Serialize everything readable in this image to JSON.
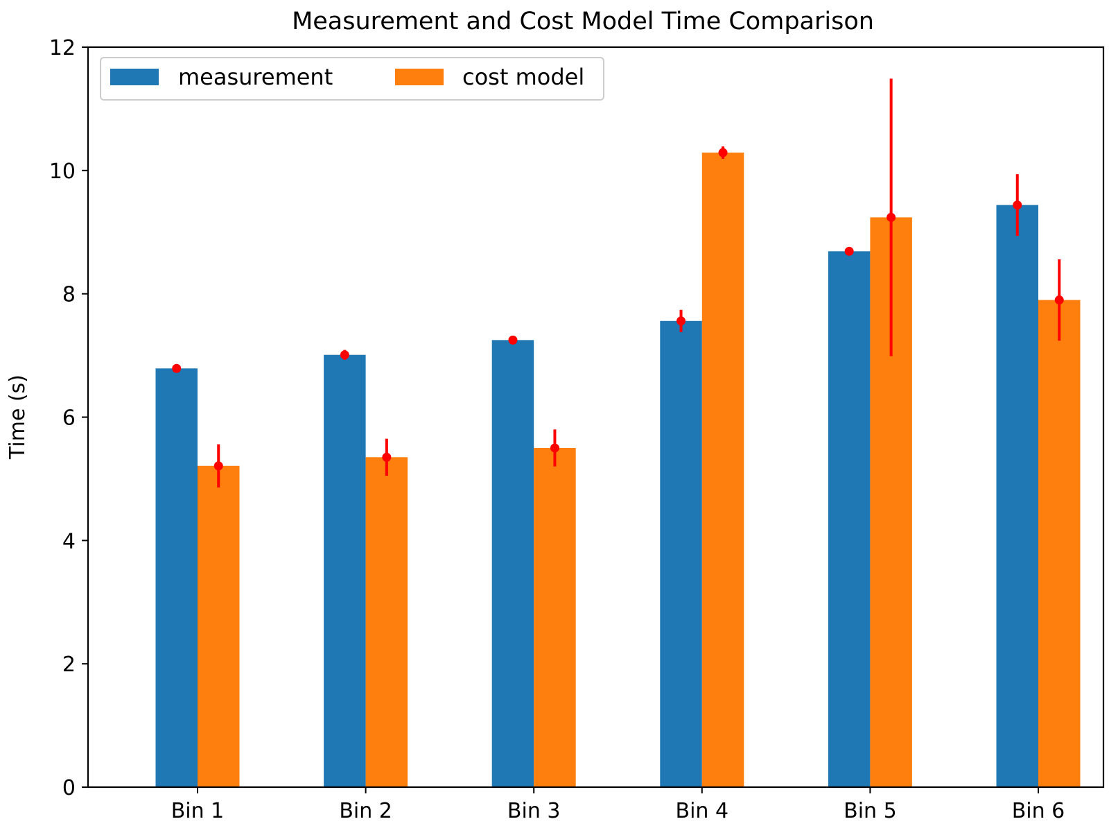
{
  "chart_data": {
    "type": "bar",
    "title": "Measurement and Cost Model Time Comparison",
    "xlabel": "",
    "ylabel": "Time (s)",
    "ylim": [
      0,
      12
    ],
    "yticks": [
      "0",
      "2",
      "4",
      "6",
      "8",
      "10",
      "12"
    ],
    "categories": [
      "Bin 1",
      "Bin 2",
      "Bin 3",
      "Bin 4",
      "Bin 5",
      "Bin 6"
    ],
    "series": [
      {
        "name": "measurement",
        "color": "#1f77b4",
        "values": [
          6.79,
          7.01,
          7.25,
          7.56,
          8.69,
          9.44
        ],
        "error": [
          0.04,
          0.08,
          0.04,
          0.18,
          0.04,
          0.5
        ]
      },
      {
        "name": "cost model",
        "color": "#ff7f0e",
        "values": [
          5.21,
          5.35,
          5.5,
          10.29,
          9.24,
          7.9
        ],
        "error": [
          0.35,
          0.3,
          0.3,
          0.1,
          2.25,
          0.66
        ]
      }
    ],
    "error_bar_color": "#ff0000",
    "grid": false,
    "legend": "top-left"
  }
}
